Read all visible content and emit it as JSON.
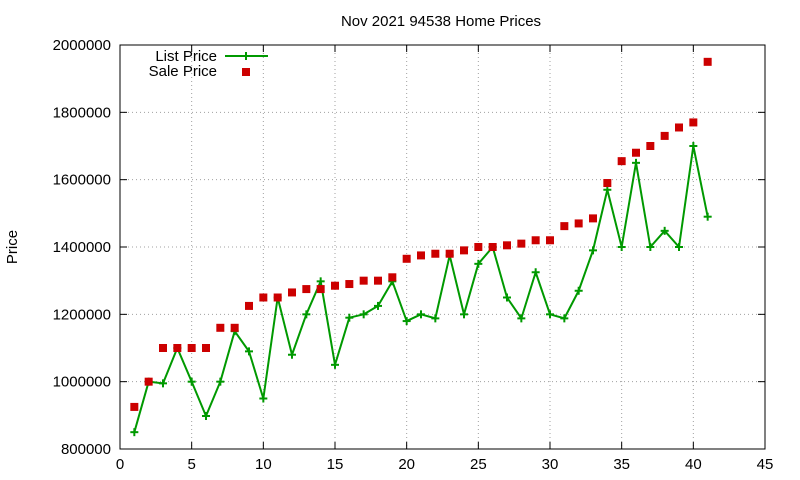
{
  "chart_data": {
    "type": "line",
    "title": "Nov 2021 94538 Home Prices",
    "xlabel": "",
    "ylabel": "Price",
    "xlim": [
      0,
      45
    ],
    "ylim": [
      800000,
      2000000
    ],
    "x_ticks": [
      0,
      5,
      10,
      15,
      20,
      25,
      30,
      35,
      40,
      45
    ],
    "y_ticks": [
      800000,
      1000000,
      1200000,
      1400000,
      1600000,
      1800000,
      2000000
    ],
    "grid": true,
    "legend_position": "top-left",
    "series": [
      {
        "name": "List Price",
        "style": "line-with-plus-markers",
        "color": "#009900",
        "x": [
          1,
          2,
          3,
          4,
          5,
          6,
          7,
          8,
          9,
          10,
          11,
          12,
          13,
          14,
          15,
          16,
          17,
          18,
          19,
          20,
          21,
          22,
          23,
          24,
          25,
          26,
          27,
          28,
          29,
          30,
          31,
          32,
          33,
          34,
          35,
          36,
          37,
          38,
          39,
          40,
          41
        ],
        "y": [
          850000,
          1000000,
          995000,
          1100000,
          1000000,
          898000,
          1000000,
          1150000,
          1090000,
          950000,
          1250000,
          1080000,
          1200000,
          1298000,
          1050000,
          1190000,
          1200000,
          1225000,
          1298000,
          1180000,
          1200000,
          1188000,
          1375000,
          1200000,
          1350000,
          1400000,
          1250000,
          1188000,
          1325000,
          1200000,
          1188000,
          1270000,
          1390000,
          1570000,
          1400000,
          1650000,
          1400000,
          1448000,
          1400000,
          1700000,
          1490000
        ]
      },
      {
        "name": "Sale Price",
        "style": "square-markers",
        "color": "#cc0000",
        "x": [
          1,
          2,
          3,
          4,
          5,
          6,
          7,
          8,
          9,
          10,
          11,
          12,
          13,
          14,
          15,
          16,
          17,
          18,
          19,
          20,
          21,
          22,
          23,
          24,
          25,
          26,
          27,
          28,
          29,
          30,
          31,
          32,
          33,
          34,
          35,
          36,
          37,
          38,
          39,
          40,
          41
        ],
        "y": [
          925000,
          1000000,
          1100000,
          1100000,
          1100000,
          1100000,
          1160000,
          1160000,
          1225000,
          1250000,
          1250000,
          1265000,
          1275000,
          1275000,
          1285000,
          1290000,
          1300000,
          1300000,
          1310000,
          1365000,
          1375000,
          1380000,
          1380000,
          1390000,
          1400000,
          1400000,
          1405000,
          1410000,
          1420000,
          1420000,
          1462000,
          1470000,
          1485000,
          1590000,
          1655000,
          1680000,
          1700000,
          1730000,
          1755000,
          1770000,
          1950000
        ]
      }
    ]
  }
}
